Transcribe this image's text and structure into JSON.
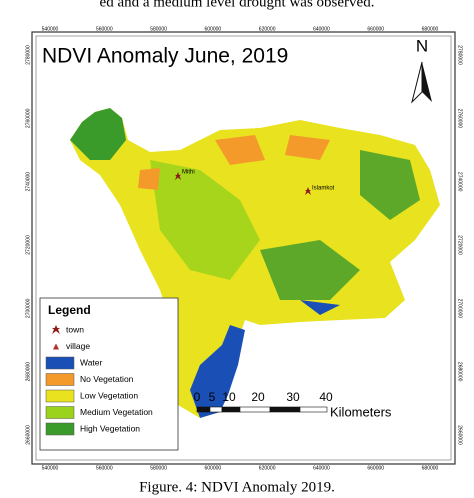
{
  "header": {
    "text": "ed and a medium level drought was observed."
  },
  "map": {
    "title": "NDVI Anomaly June, 2019",
    "north": "N",
    "x_labels": [
      "540000",
      "560000",
      "580000",
      "600000",
      "620000",
      "640000",
      "660000",
      "680000"
    ],
    "y_labels": [
      "2780000",
      "2760000",
      "2740000",
      "2720000",
      "2700000",
      "2680000",
      "2660000"
    ],
    "places": [
      "Mithi",
      "Islamkot"
    ],
    "legend": {
      "title": "Legend",
      "items": [
        {
          "label": "town",
          "color": "#8b1a1a",
          "symbol": "star"
        },
        {
          "label": "village",
          "color": "#b03030",
          "symbol": "triangle"
        },
        {
          "label": "Water",
          "color": "#1a4fb5",
          "symbol": "box"
        },
        {
          "label": "No Vegetation",
          "color": "#f39a2b",
          "symbol": "box"
        },
        {
          "label": "Low Vegetation",
          "color": "#e8e21f",
          "symbol": "box"
        },
        {
          "label": "Medium Vegetation",
          "color": "#9bd21b",
          "symbol": "box"
        },
        {
          "label": "High Vegetation",
          "color": "#3a9a2a",
          "symbol": "box"
        }
      ]
    },
    "scale": {
      "labels": [
        "0",
        "5",
        "10",
        "20",
        "30",
        "40"
      ],
      "unit": "Kilometers"
    }
  },
  "caption": "Figure. 4: NDVI Anomaly 2019."
}
